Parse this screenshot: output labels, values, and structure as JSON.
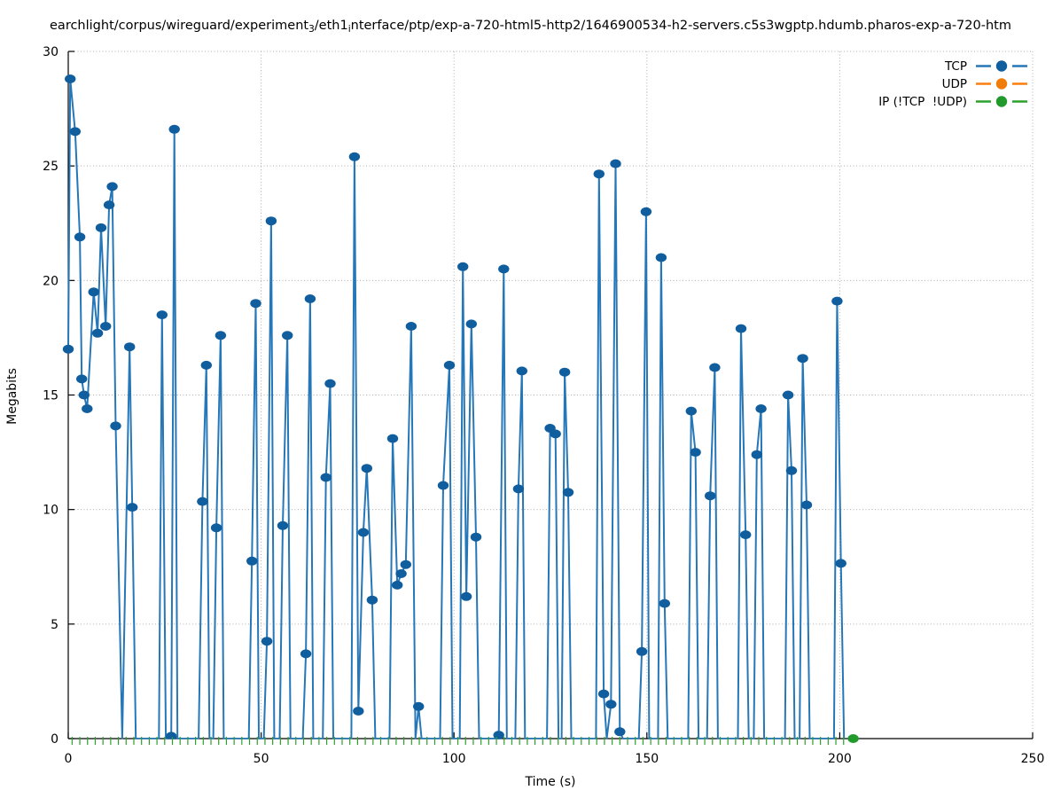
{
  "title": {
    "segments": [
      {
        "text": "earchlight/corpus/wireguard/experiment",
        "sub": false
      },
      {
        "text": "3",
        "sub": true
      },
      {
        "text": "/eth1",
        "sub": false
      },
      {
        "text": "i",
        "sub": true
      },
      {
        "text": "nterface/ptp/exp-a-720-html5-http2/1646900534-h2-servers.c5s3wgptp.hdumb.pharos-exp-a-720-htm",
        "sub": false
      }
    ]
  },
  "chart_data": {
    "type": "line",
    "xlabel": "Time (s)",
    "ylabel": "Megabits",
    "xlim": [
      0,
      250
    ],
    "ylim": [
      0,
      30
    ],
    "xticks": [
      0,
      50,
      100,
      150,
      200,
      250
    ],
    "yticks": [
      0,
      5,
      10,
      15,
      20,
      25,
      30
    ],
    "grid": true,
    "grid_color": "#b0b0b0",
    "axis_color": "#000000",
    "legend_position": "top-right-inside",
    "series": [
      {
        "name": "TCP",
        "line_color": "#2677b8",
        "marker_color": "#115e9f",
        "marker": "circle",
        "points": [
          [
            0,
            17.0
          ],
          [
            0.5,
            28.8
          ],
          [
            1.8,
            26.5
          ],
          [
            3.0,
            21.9
          ],
          [
            3.5,
            15.7
          ],
          [
            4.1,
            15.0
          ],
          [
            4.9,
            14.4
          ],
          [
            6.6,
            19.5
          ],
          [
            7.6,
            17.7
          ],
          [
            8.5,
            22.3
          ],
          [
            9.7,
            18.0
          ],
          [
            10.6,
            23.3
          ],
          [
            11.4,
            24.1
          ],
          [
            12.3,
            13.65
          ],
          [
            14.0,
            0
          ],
          [
            15.9,
            17.1
          ],
          [
            16.6,
            10.1
          ],
          [
            17.5,
            0
          ],
          [
            23.5,
            0
          ],
          [
            24.3,
            18.5
          ],
          [
            25.3,
            0
          ],
          [
            26.7,
            0.1
          ],
          [
            27.5,
            26.6
          ],
          [
            28.3,
            0
          ],
          [
            33.8,
            0
          ],
          [
            34.8,
            10.35
          ],
          [
            35.8,
            16.3
          ],
          [
            36.6,
            0
          ],
          [
            37.6,
            0
          ],
          [
            38.4,
            9.2
          ],
          [
            39.5,
            17.6
          ],
          [
            40.3,
            0
          ],
          [
            46.8,
            0
          ],
          [
            47.6,
            7.75
          ],
          [
            48.6,
            19.0
          ],
          [
            49.4,
            0
          ],
          [
            50.7,
            0
          ],
          [
            51.5,
            4.25
          ],
          [
            52.6,
            22.6
          ],
          [
            53.4,
            0
          ],
          [
            54.8,
            0
          ],
          [
            55.6,
            9.3
          ],
          [
            56.8,
            17.6
          ],
          [
            57.6,
            0
          ],
          [
            60.8,
            0
          ],
          [
            61.6,
            3.7
          ],
          [
            62.7,
            19.2
          ],
          [
            63.5,
            0
          ],
          [
            66.0,
            0
          ],
          [
            66.8,
            11.4
          ],
          [
            67.9,
            15.5
          ],
          [
            68.7,
            0
          ],
          [
            73.4,
            0
          ],
          [
            74.2,
            25.4
          ],
          [
            75.2,
            1.2
          ],
          [
            76.5,
            9.0
          ],
          [
            77.4,
            11.8
          ],
          [
            78.8,
            6.05
          ],
          [
            79.6,
            0
          ],
          [
            83.3,
            0
          ],
          [
            84.1,
            13.1
          ],
          [
            85.3,
            6.7
          ],
          [
            86.3,
            7.2
          ],
          [
            87.5,
            7.6
          ],
          [
            88.9,
            18.0
          ],
          [
            90.0,
            0
          ],
          [
            90.8,
            1.4
          ],
          [
            91.6,
            0
          ],
          [
            96.4,
            0
          ],
          [
            97.2,
            11.05
          ],
          [
            98.8,
            16.3
          ],
          [
            99.6,
            0
          ],
          [
            101.5,
            0
          ],
          [
            102.3,
            20.6
          ],
          [
            103.2,
            6.2
          ],
          [
            104.5,
            18.1
          ],
          [
            105.7,
            8.8
          ],
          [
            106.5,
            0
          ],
          [
            111.0,
            0
          ],
          [
            111.6,
            0.15
          ],
          [
            112.9,
            20.5
          ],
          [
            113.7,
            0
          ],
          [
            115.9,
            0
          ],
          [
            116.7,
            10.9
          ],
          [
            117.6,
            16.05
          ],
          [
            118.4,
            0
          ],
          [
            124.1,
            0
          ],
          [
            124.9,
            13.55
          ],
          [
            126.3,
            13.3
          ],
          [
            127.1,
            0
          ],
          [
            127.9,
            0
          ],
          [
            128.7,
            16.0
          ],
          [
            129.6,
            10.75
          ],
          [
            130.4,
            0
          ],
          [
            136.8,
            0
          ],
          [
            137.6,
            24.65
          ],
          [
            138.8,
            1.95
          ],
          [
            139.6,
            0
          ],
          [
            140.7,
            1.5
          ],
          [
            141.9,
            25.1
          ],
          [
            143.0,
            0.3
          ],
          [
            143.8,
            0
          ],
          [
            147.9,
            0
          ],
          [
            148.7,
            3.8
          ],
          [
            149.8,
            23.0
          ],
          [
            150.6,
            0
          ],
          [
            152.9,
            0
          ],
          [
            153.7,
            21.0
          ],
          [
            154.6,
            5.9
          ],
          [
            155.4,
            0
          ],
          [
            160.7,
            0
          ],
          [
            161.5,
            14.3
          ],
          [
            162.6,
            12.5
          ],
          [
            163.4,
            0
          ],
          [
            165.6,
            0
          ],
          [
            166.4,
            10.6
          ],
          [
            167.6,
            16.2
          ],
          [
            168.4,
            0
          ],
          [
            173.6,
            0
          ],
          [
            174.4,
            17.9
          ],
          [
            175.6,
            8.9
          ],
          [
            176.4,
            0
          ],
          [
            177.7,
            0
          ],
          [
            178.5,
            12.4
          ],
          [
            179.6,
            14.4
          ],
          [
            180.4,
            0
          ],
          [
            185.8,
            0
          ],
          [
            186.6,
            15.0
          ],
          [
            187.5,
            11.7
          ],
          [
            188.3,
            0
          ],
          [
            189.6,
            0
          ],
          [
            190.4,
            16.6
          ],
          [
            191.4,
            10.2
          ],
          [
            192.2,
            0
          ],
          [
            198.5,
            0
          ],
          [
            199.3,
            19.1
          ],
          [
            200.3,
            7.65
          ],
          [
            201.1,
            0
          ]
        ]
      },
      {
        "name": "UDP",
        "line_color": "#ff7f0e",
        "marker_color": "#f07c0a",
        "marker": "circle",
        "points": []
      },
      {
        "name": "IP (!TCP  !UDP)",
        "line_color": "#2ca02c",
        "marker_color": "#229a2b",
        "marker": "circle",
        "points": [
          [
            203.5,
            0
          ]
        ],
        "zero_tick_run": {
          "t_start": 1,
          "t_end": 201,
          "step": 2,
          "value": 0
        }
      }
    ]
  }
}
